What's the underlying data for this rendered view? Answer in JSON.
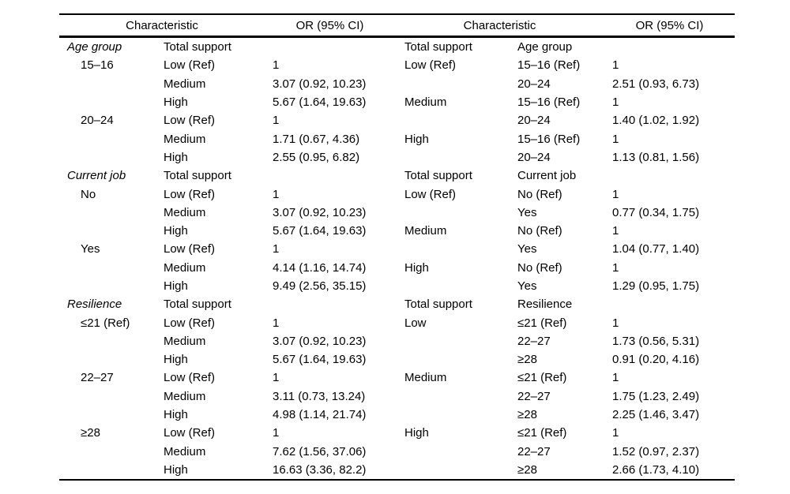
{
  "page": {
    "background": "#ffffff",
    "text_color": "#000000",
    "rule_color": "#000000"
  },
  "table": {
    "headers": {
      "left_characteristic": "Characteristic",
      "left_or": "OR (95% CI)",
      "right_characteristic": "Characteristic",
      "right_or": "OR (95% CI)"
    },
    "left_panel": {
      "rows": [
        {
          "c1": "Age group",
          "italic": true,
          "c2": "Total support",
          "c3": ""
        },
        {
          "c1": "15–16",
          "indent": true,
          "c2": "Low (Ref)",
          "c3": "1"
        },
        {
          "c1": "",
          "c2": "Medium",
          "c3": "3.07 (0.92, 10.23)"
        },
        {
          "c1": "",
          "c2": "High",
          "c3": "5.67 (1.64, 19.63)"
        },
        {
          "c1": "20–24",
          "indent": true,
          "c2": "Low (Ref)",
          "c3": "1"
        },
        {
          "c1": "",
          "c2": "Medium",
          "c3": "1.71 (0.67, 4.36)"
        },
        {
          "c1": "",
          "c2": "High",
          "c3": "2.55 (0.95, 6.82)"
        },
        {
          "c1": "Current job",
          "italic": true,
          "c2": "Total support",
          "c3": ""
        },
        {
          "c1": "No",
          "indent": true,
          "c2": "Low (Ref)",
          "c3": "1"
        },
        {
          "c1": "",
          "c2": "Medium",
          "c3": "3.07 (0.92, 10.23)"
        },
        {
          "c1": "",
          "c2": "High",
          "c3": "5.67 (1.64, 19.63)"
        },
        {
          "c1": "Yes",
          "indent": true,
          "c2": "Low (Ref)",
          "c3": "1"
        },
        {
          "c1": "",
          "c2": "Medium",
          "c3": "4.14 (1.16, 14.74)"
        },
        {
          "c1": "",
          "c2": "High",
          "c3": "9.49 (2.56, 35.15)"
        },
        {
          "c1": "Resilience",
          "italic": true,
          "c2": "Total support",
          "c3": ""
        },
        {
          "c1": "≤21 (Ref)",
          "indent": true,
          "c2": "Low (Ref)",
          "c3": "1"
        },
        {
          "c1": "",
          "c2": "Medium",
          "c3": "3.07 (0.92, 10.23)"
        },
        {
          "c1": "",
          "c2": "High",
          "c3": "5.67 (1.64, 19.63)"
        },
        {
          "c1": "22–27",
          "indent": true,
          "c2": "Low (Ref)",
          "c3": "1"
        },
        {
          "c1": "",
          "c2": "Medium",
          "c3": "3.11 (0.73, 13.24)"
        },
        {
          "c1": "",
          "c2": "High",
          "c3": "4.98 (1.14, 21.74)"
        },
        {
          "c1": "≥28",
          "indent": true,
          "c2": "Low (Ref)",
          "c3": "1"
        },
        {
          "c1": "",
          "c2": "Medium",
          "c3": "7.62 (1.56, 37.06)"
        },
        {
          "c1": "",
          "c2": "High",
          "c3": "16.63 (3.36, 82.2)"
        }
      ]
    },
    "right_panel": {
      "rows": [
        {
          "c1": "Total support",
          "c2": "Age group",
          "c3": ""
        },
        {
          "c1": "Low (Ref)",
          "c2": "15–16 (Ref)",
          "c3": "1"
        },
        {
          "c1": "",
          "c2": "20–24",
          "c3": "2.51 (0.93, 6.73)"
        },
        {
          "c1": "Medium",
          "c2": "15–16 (Ref)",
          "c3": "1"
        },
        {
          "c1": "",
          "c2": "20–24",
          "c3": "1.40 (1.02, 1.92)"
        },
        {
          "c1": "High",
          "c2": "15–16 (Ref)",
          "c3": "1"
        },
        {
          "c1": "",
          "c2": "20–24",
          "c3": "1.13 (0.81, 1.56)"
        },
        {
          "c1": "Total support",
          "c2": "Current job",
          "c3": ""
        },
        {
          "c1": "Low (Ref)",
          "c2": "No (Ref)",
          "c3": "1"
        },
        {
          "c1": "",
          "c2": "Yes",
          "c3": "0.77 (0.34, 1.75)"
        },
        {
          "c1": "Medium",
          "c2": "No (Ref)",
          "c3": "1"
        },
        {
          "c1": "",
          "c2": "Yes",
          "c3": "1.04 (0.77, 1.40)"
        },
        {
          "c1": "High",
          "c2": "No (Ref)",
          "c3": "1"
        },
        {
          "c1": "",
          "c2": "Yes",
          "c3": "1.29 (0.95, 1.75)"
        },
        {
          "c1": "Total support",
          "c2": "Resilience",
          "c3": ""
        },
        {
          "c1": "Low",
          "c2": "≤21 (Ref)",
          "c3": "1"
        },
        {
          "c1": "",
          "c2": "22–27",
          "c3": "1.73 (0.56, 5.31)"
        },
        {
          "c1": "",
          "c2": "≥28",
          "c3": "0.91 (0.20, 4.16)"
        },
        {
          "c1": "Medium",
          "c2": "≤21 (Ref)",
          "c3": "1"
        },
        {
          "c1": "",
          "c2": "22–27",
          "c3": "1.75 (1.23, 2.49)"
        },
        {
          "c1": "",
          "c2": "≥28",
          "c3": "2.25 (1.46, 3.47)"
        },
        {
          "c1": "High",
          "c2": "≤21 (Ref)",
          "c3": "1"
        },
        {
          "c1": "",
          "c2": "22–27",
          "c3": "1.52 (0.97, 2.37)"
        },
        {
          "c1": "",
          "c2": "≥28",
          "c3": "2.66 (1.73, 4.10)"
        }
      ]
    }
  }
}
